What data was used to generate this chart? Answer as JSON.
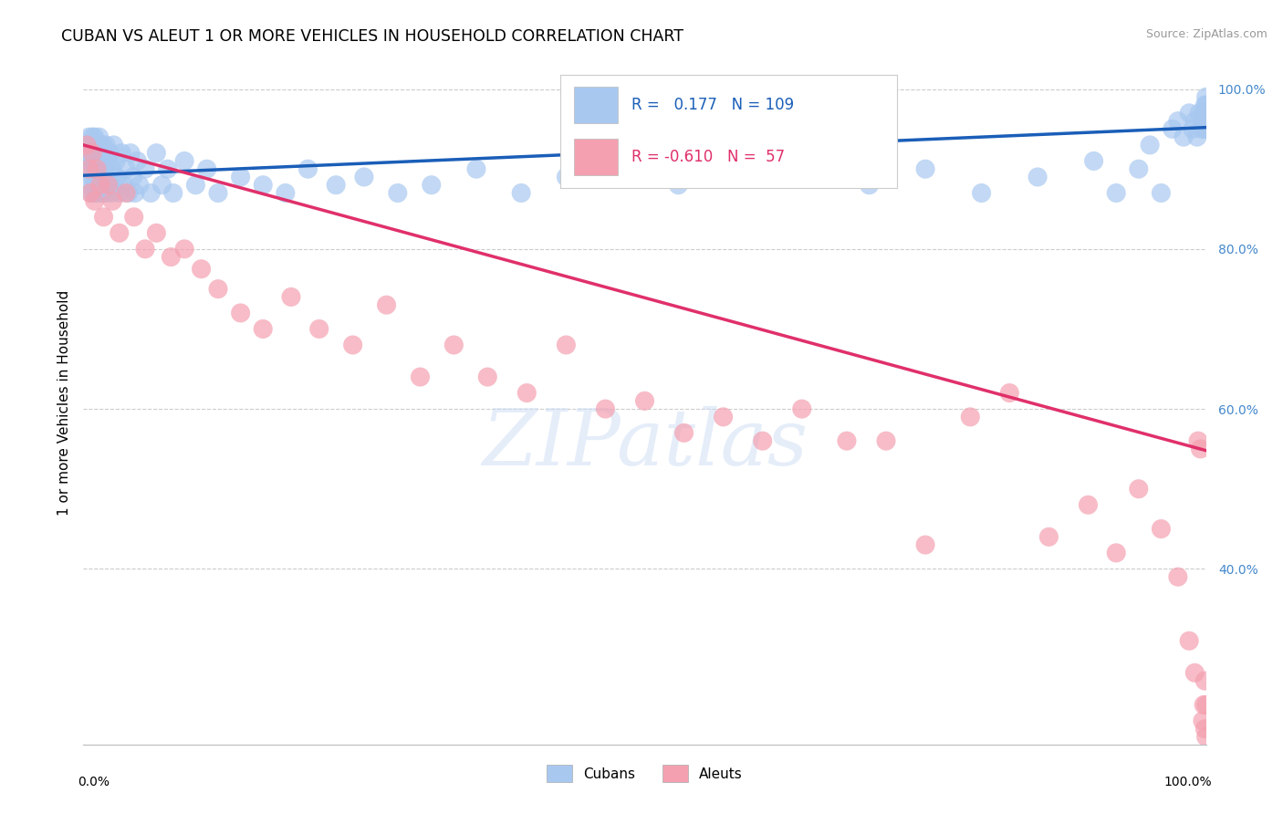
{
  "title": "CUBAN VS ALEUT 1 OR MORE VEHICLES IN HOUSEHOLD CORRELATION CHART",
  "source_text": "Source: ZipAtlas.com",
  "ylabel": "1 or more Vehicles in Household",
  "xmin": 0.0,
  "xmax": 1.0,
  "ymin": 0.18,
  "ymax": 1.035,
  "ytick_vals": [
    0.4,
    0.6,
    0.8,
    1.0
  ],
  "ytick_labels": [
    "40.0%",
    "60.0%",
    "80.0%",
    "100.0%"
  ],
  "cuban_color": "#a8c8f0",
  "aleut_color": "#f4a0b0",
  "cuban_line_color": "#1a5eb8",
  "aleut_line_color": "#e0306a",
  "cuban_R": "0.177",
  "cuban_N": "109",
  "aleut_R": "-0.610",
  "aleut_N": "57",
  "cuban_line_x": [
    0.0,
    1.0
  ],
  "cuban_line_y": [
    0.892,
    0.952
  ],
  "aleut_line_x": [
    0.0,
    1.0
  ],
  "aleut_line_y": [
    0.93,
    0.548
  ],
  "cubans_x": [
    0.002,
    0.003,
    0.004,
    0.005,
    0.005,
    0.006,
    0.006,
    0.007,
    0.007,
    0.008,
    0.008,
    0.009,
    0.009,
    0.01,
    0.01,
    0.01,
    0.011,
    0.011,
    0.012,
    0.012,
    0.013,
    0.013,
    0.014,
    0.014,
    0.015,
    0.015,
    0.016,
    0.016,
    0.017,
    0.017,
    0.018,
    0.018,
    0.019,
    0.02,
    0.02,
    0.021,
    0.022,
    0.023,
    0.024,
    0.025,
    0.026,
    0.027,
    0.028,
    0.029,
    0.03,
    0.032,
    0.034,
    0.036,
    0.038,
    0.04,
    0.042,
    0.044,
    0.046,
    0.048,
    0.05,
    0.055,
    0.06,
    0.065,
    0.07,
    0.075,
    0.08,
    0.09,
    0.1,
    0.11,
    0.12,
    0.14,
    0.16,
    0.18,
    0.2,
    0.225,
    0.25,
    0.28,
    0.31,
    0.35,
    0.39,
    0.43,
    0.48,
    0.53,
    0.59,
    0.64,
    0.7,
    0.75,
    0.8,
    0.85,
    0.9,
    0.92,
    0.94,
    0.95,
    0.96,
    0.97,
    0.975,
    0.98,
    0.985,
    0.988,
    0.99,
    0.992,
    0.994,
    0.996,
    0.997,
    0.998,
    0.999,
    0.999,
    1.0,
    1.0,
    1.0,
    1.0,
    1.0,
    1.0,
    1.0
  ],
  "cubans_y": [
    0.92,
    0.91,
    0.93,
    0.88,
    0.94,
    0.9,
    0.92,
    0.87,
    0.91,
    0.89,
    0.94,
    0.88,
    0.92,
    0.9,
    0.87,
    0.94,
    0.91,
    0.88,
    0.93,
    0.9,
    0.87,
    0.92,
    0.89,
    0.94,
    0.88,
    0.91,
    0.9,
    0.87,
    0.93,
    0.89,
    0.92,
    0.88,
    0.9,
    0.87,
    0.93,
    0.89,
    0.91,
    0.88,
    0.92,
    0.87,
    0.9,
    0.93,
    0.88,
    0.91,
    0.89,
    0.87,
    0.92,
    0.88,
    0.9,
    0.87,
    0.92,
    0.89,
    0.87,
    0.91,
    0.88,
    0.9,
    0.87,
    0.92,
    0.88,
    0.9,
    0.87,
    0.91,
    0.88,
    0.9,
    0.87,
    0.89,
    0.88,
    0.87,
    0.9,
    0.88,
    0.89,
    0.87,
    0.88,
    0.9,
    0.87,
    0.89,
    0.9,
    0.88,
    0.9,
    0.89,
    0.88,
    0.9,
    0.87,
    0.89,
    0.91,
    0.87,
    0.9,
    0.93,
    0.87,
    0.95,
    0.96,
    0.94,
    0.97,
    0.95,
    0.96,
    0.94,
    0.97,
    0.95,
    0.96,
    0.97,
    0.95,
    0.98,
    0.96,
    0.97,
    0.95,
    0.96,
    0.97,
    0.98,
    0.99
  ],
  "aleuts_x": [
    0.003,
    0.005,
    0.006,
    0.008,
    0.01,
    0.012,
    0.015,
    0.018,
    0.022,
    0.026,
    0.032,
    0.038,
    0.045,
    0.055,
    0.065,
    0.078,
    0.09,
    0.105,
    0.12,
    0.14,
    0.16,
    0.185,
    0.21,
    0.24,
    0.27,
    0.3,
    0.33,
    0.36,
    0.395,
    0.43,
    0.465,
    0.5,
    0.535,
    0.57,
    0.605,
    0.64,
    0.68,
    0.715,
    0.75,
    0.79,
    0.825,
    0.86,
    0.895,
    0.92,
    0.94,
    0.96,
    0.975,
    0.985,
    0.99,
    0.993,
    0.995,
    0.997,
    0.998,
    0.999,
    0.999,
    1.0,
    1.0
  ],
  "aleuts_y": [
    0.93,
    0.9,
    0.87,
    0.92,
    0.86,
    0.9,
    0.88,
    0.84,
    0.88,
    0.86,
    0.82,
    0.87,
    0.84,
    0.8,
    0.82,
    0.79,
    0.8,
    0.775,
    0.75,
    0.72,
    0.7,
    0.74,
    0.7,
    0.68,
    0.73,
    0.64,
    0.68,
    0.64,
    0.62,
    0.68,
    0.6,
    0.61,
    0.57,
    0.59,
    0.56,
    0.6,
    0.56,
    0.56,
    0.43,
    0.59,
    0.62,
    0.44,
    0.48,
    0.42,
    0.5,
    0.45,
    0.39,
    0.31,
    0.27,
    0.56,
    0.55,
    0.21,
    0.23,
    0.26,
    0.2,
    0.23,
    0.19
  ],
  "watermark_text": "ZIPatlas",
  "background_color": "#ffffff",
  "grid_color": "#cccccc",
  "title_fontsize": 12.5,
  "axis_label_fontsize": 11,
  "tick_fontsize": 10,
  "legend_fontsize": 12,
  "source_fontsize": 9
}
